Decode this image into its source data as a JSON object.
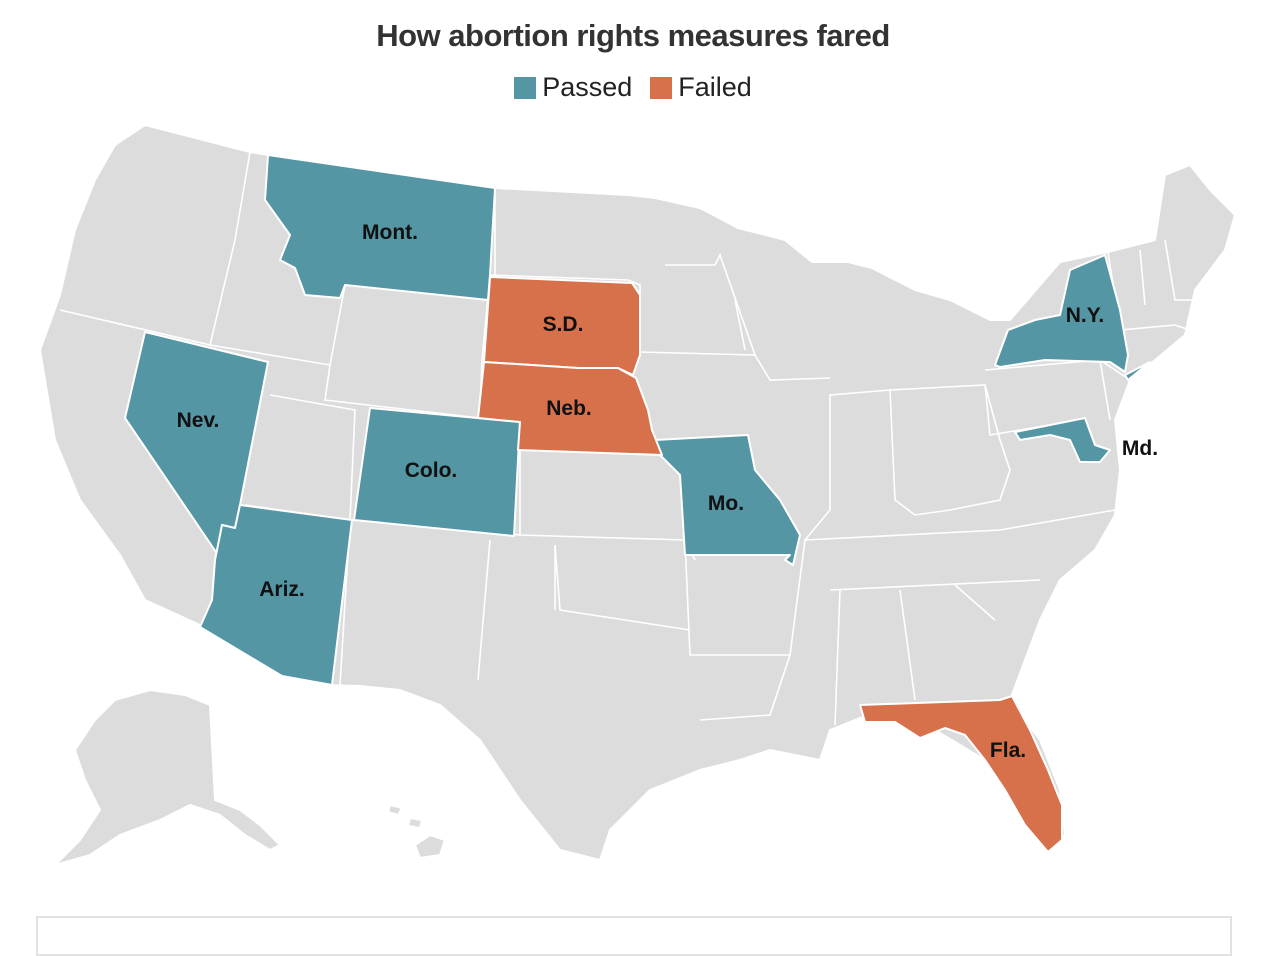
{
  "title": "How abortion rights measures fared",
  "legend": [
    {
      "label": "Passed",
      "color": "#5496a4"
    },
    {
      "label": "Failed",
      "color": "#d6714b"
    }
  ],
  "colors": {
    "passed": "#5496a4",
    "failed": "#d6714b",
    "other": "#dcdcdc",
    "border": "#ffffff"
  },
  "states": [
    {
      "name": "Mont.",
      "result": "Passed"
    },
    {
      "name": "Nev.",
      "result": "Passed"
    },
    {
      "name": "Ariz.",
      "result": "Passed"
    },
    {
      "name": "Colo.",
      "result": "Passed"
    },
    {
      "name": "Mo.",
      "result": "Passed"
    },
    {
      "name": "N.Y.",
      "result": "Passed"
    },
    {
      "name": "Md.",
      "result": "Passed"
    },
    {
      "name": "S.D.",
      "result": "Failed"
    },
    {
      "name": "Neb.",
      "result": "Failed"
    },
    {
      "name": "Fla.",
      "result": "Failed"
    }
  ]
}
